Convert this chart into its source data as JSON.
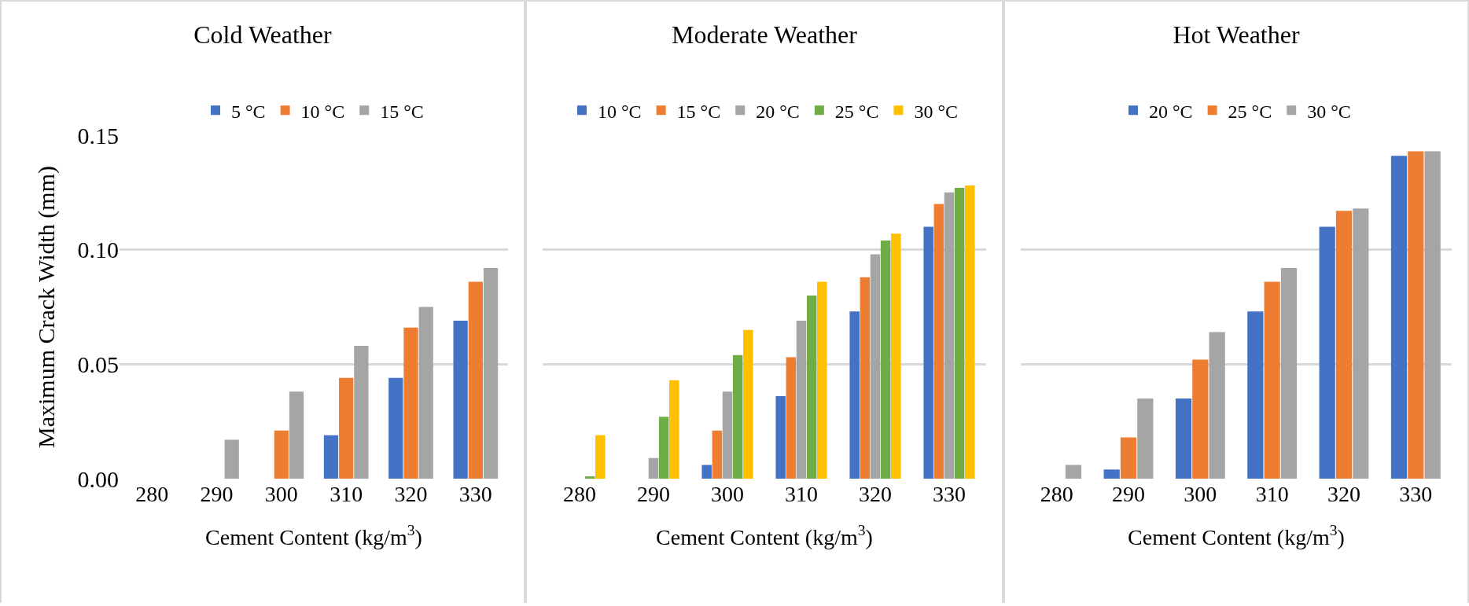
{
  "chart_data": [
    {
      "type": "bar",
      "title": "Cold Weather",
      "xlabel": "Cement Content (kg/m$^{3}$)",
      "ylabel": "Maximum Crack Width (mm)",
      "categories": [
        "280",
        "290",
        "300",
        "310",
        "320",
        "330"
      ],
      "series": [
        {
          "name": "5 °C",
          "color": "#4472c4",
          "values": [
            null,
            null,
            null,
            0.019,
            0.044,
            0.069
          ]
        },
        {
          "name": "10 °C",
          "color": "#ed7d31",
          "values": [
            null,
            null,
            0.021,
            0.044,
            0.066,
            0.086
          ]
        },
        {
          "name": "15 °C",
          "color": "#a5a5a5",
          "values": [
            null,
            0.017,
            0.038,
            0.058,
            0.075,
            0.092
          ]
        }
      ],
      "ylim": [
        0,
        0.15
      ],
      "yticks": [
        {
          "value": 0,
          "label": "0.00"
        },
        {
          "value": 0.05,
          "label": "0.05"
        },
        {
          "value": 0.1,
          "label": "0.10"
        },
        {
          "value": 0.15,
          "label": "0.15"
        }
      ],
      "grid": "y",
      "legend": "top"
    },
    {
      "type": "bar",
      "title": "Moderate Weather",
      "xlabel": "Cement Content (kg/m$^{3}$)",
      "categories": [
        "280",
        "290",
        "300",
        "310",
        "320",
        "330"
      ],
      "series": [
        {
          "name": "10 °C",
          "color": "#4472c4",
          "values": [
            null,
            null,
            0.006,
            0.036,
            0.073,
            0.11
          ]
        },
        {
          "name": "15 °C",
          "color": "#ed7d31",
          "values": [
            null,
            null,
            0.021,
            0.053,
            0.088,
            0.12
          ]
        },
        {
          "name": "20 °C",
          "color": "#a5a5a5",
          "values": [
            null,
            0.009,
            0.038,
            0.069,
            0.098,
            0.125
          ]
        },
        {
          "name": "25 °C",
          "color": "#70ad47",
          "values": [
            0.001,
            0.027,
            0.054,
            0.08,
            0.104,
            0.127
          ]
        },
        {
          "name": "30 °C",
          "color": "#ffc000",
          "values": [
            0.019,
            0.043,
            0.065,
            0.086,
            0.107,
            0.128
          ]
        }
      ],
      "ylim": [
        0,
        0.15
      ],
      "yticks": [
        0,
        0.05,
        0.1,
        0.15
      ],
      "grid": "y",
      "legend": "top",
      "tick_labels": "x"
    },
    {
      "type": "bar",
      "title": "Hot Weather",
      "xlabel": "Cement Content (kg/m$^{3}$)",
      "categories": [
        "280",
        "290",
        "300",
        "310",
        "320",
        "330"
      ],
      "series": [
        {
          "name": "20 °C",
          "color": "#4472c4",
          "values": [
            null,
            0.004,
            0.035,
            0.073,
            0.11,
            0.141
          ]
        },
        {
          "name": "25 °C",
          "color": "#ed7d31",
          "values": [
            null,
            0.018,
            0.052,
            0.086,
            0.117,
            0.143
          ]
        },
        {
          "name": "30 °C",
          "color": "#a5a5a5",
          "values": [
            0.006,
            0.035,
            0.064,
            0.092,
            0.118,
            0.143
          ]
        }
      ],
      "ylim": [
        0,
        0.15
      ],
      "yticks": [
        0,
        0.05,
        0.1,
        0.15
      ],
      "grid": "y",
      "legend": "top",
      "tick_labels": "x"
    }
  ]
}
